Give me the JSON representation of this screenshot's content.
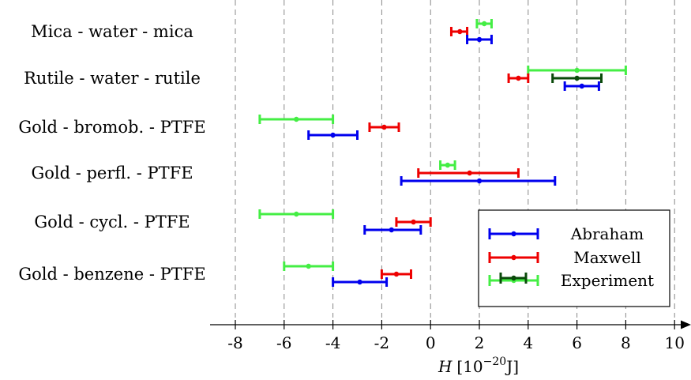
{
  "chart_data": {
    "type": "errorbar",
    "xlabel_symbol": "H",
    "xlabel_unit_prefix": "[10",
    "xlabel_unit_exp": "−20",
    "xlabel_unit_suffix": "J]",
    "xlim": [
      -8,
      10
    ],
    "xticks": [
      -8,
      -6,
      -4,
      -2,
      0,
      2,
      4,
      6,
      8,
      10
    ],
    "xtick_labels": [
      "-8",
      "-6",
      "-4",
      "-2",
      "0",
      "2",
      "4",
      "6",
      "8",
      "10"
    ],
    "grid": "vertical-dashed",
    "legend_position": "bottom-right",
    "categories": [
      "Mica - water - mica",
      "Rutile - water - rutile",
      "Gold - bromob. - PTFE",
      "Gold - perfl. - PTFE",
      "Gold - cycl. - PTFE",
      "Gold - benzene - PTFE"
    ],
    "series": [
      {
        "name": "Abraham",
        "color": "#0000ee",
        "points": [
          {
            "category": 0,
            "value": 2.0,
            "low": 1.5,
            "high": 2.5
          },
          {
            "category": 1,
            "value": 6.2,
            "low": 5.5,
            "high": 6.9
          },
          {
            "category": 2,
            "value": -4.0,
            "low": -5.0,
            "high": -3.0
          },
          {
            "category": 3,
            "value": 2.0,
            "low": -1.2,
            "high": 5.1
          },
          {
            "category": 4,
            "value": -1.6,
            "low": -2.7,
            "high": -0.4
          },
          {
            "category": 5,
            "value": -2.9,
            "low": -4.0,
            "high": -1.8
          }
        ]
      },
      {
        "name": "Maxwell",
        "color": "#ee0000",
        "points": [
          {
            "category": 0,
            "value": 1.2,
            "low": 0.85,
            "high": 1.5
          },
          {
            "category": 1,
            "value": 3.6,
            "low": 3.2,
            "high": 4.0
          },
          {
            "category": 2,
            "value": -1.9,
            "low": -2.5,
            "high": -1.3
          },
          {
            "category": 3,
            "value": 1.6,
            "low": -0.5,
            "high": 3.6
          },
          {
            "category": 4,
            "value": -0.7,
            "low": -1.4,
            "high": 0.0
          },
          {
            "category": 5,
            "value": -1.4,
            "low": -2.0,
            "high": -0.8
          }
        ]
      },
      {
        "name": "Experiment",
        "color": "#44ee44",
        "points": [
          {
            "category": 0,
            "value": 2.2,
            "low": 1.9,
            "high": 2.5
          },
          {
            "category": 1,
            "value": 6.0,
            "low": 4.0,
            "high": 8.0
          },
          {
            "category": 2,
            "value": -5.5,
            "low": -7.0,
            "high": -4.0
          },
          {
            "category": 3,
            "value": 0.7,
            "low": 0.4,
            "high": 1.0
          },
          {
            "category": 4,
            "value": -5.5,
            "low": -7.0,
            "high": -4.0
          },
          {
            "category": 5,
            "value": -5.0,
            "low": -6.0,
            "high": -4.0
          }
        ]
      },
      {
        "name": "",
        "color": "#0a4a0a",
        "points": [
          {
            "category": 1,
            "value": 6.0,
            "low": 5.0,
            "high": 7.0
          }
        ]
      }
    ],
    "legend": [
      "Abraham",
      "Maxwell",
      "Experiment"
    ]
  }
}
